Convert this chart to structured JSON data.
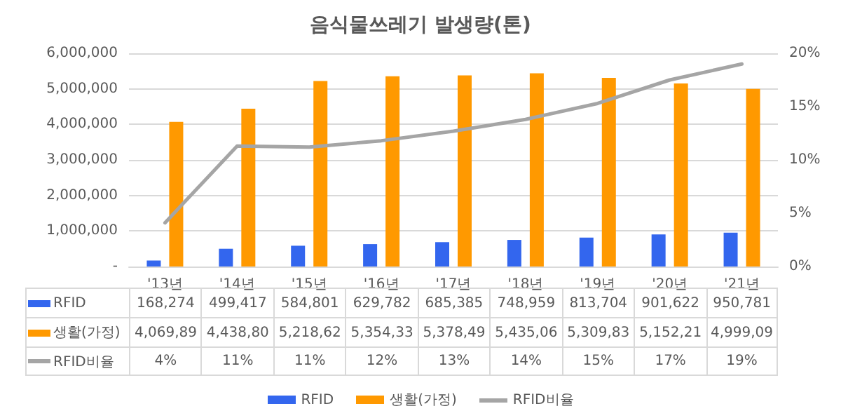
{
  "chart_data": {
    "type": "bar",
    "title": "음식물쓰레기 발생량(톤)",
    "categories": [
      "'13년",
      "'14년",
      "'15년",
      "'16년",
      "'17년",
      "'18년",
      "'19년",
      "'20년",
      "'21년"
    ],
    "series": [
      {
        "name": "RFID",
        "color": "#3366ee",
        "values": [
          168274,
          499417,
          584801,
          629782,
          685385,
          748959,
          813704,
          901622,
          950781
        ],
        "value_labels": [
          "168,274",
          "499,417",
          "584,801",
          "629,782",
          "685,385",
          "748,959",
          "813,704",
          "901,622",
          "950,781"
        ]
      },
      {
        "name": "생활(가정)",
        "color": "#ff9900",
        "values": [
          4069890,
          4438800,
          5218620,
          5354330,
          5378490,
          5435060,
          5309830,
          5152210,
          4999090
        ],
        "value_labels": [
          "4,069,89",
          "4,438,80",
          "5,218,62",
          "5,354,33",
          "5,378,49",
          "5,435,06",
          "5,309,83",
          "5,152,21",
          "4,999,09"
        ]
      },
      {
        "name": "RFID비율",
        "type": "line",
        "axis": "y2",
        "color": "#a5a5a5",
        "values": [
          4.1,
          11.3,
          11.2,
          11.8,
          12.7,
          13.8,
          15.3,
          17.5,
          19.0
        ],
        "value_labels": [
          "4%",
          "11%",
          "11%",
          "12%",
          "13%",
          "14%",
          "15%",
          "17%",
          "19%"
        ]
      }
    ],
    "ylim": [
      0,
      6000000
    ],
    "yticks": [
      {
        "value": 0,
        "label": "-"
      },
      {
        "value": 1000000,
        "label": "1,000,000"
      },
      {
        "value": 2000000,
        "label": "2,000,000"
      },
      {
        "value": 3000000,
        "label": "3,000,000"
      },
      {
        "value": 4000000,
        "label": "4,000,000"
      },
      {
        "value": 5000000,
        "label": "5,000,000"
      },
      {
        "value": 6000000,
        "label": "6,000,000"
      }
    ],
    "y2lim": [
      0,
      20
    ],
    "y2ticks": [
      {
        "value": 0,
        "label": "0%"
      },
      {
        "value": 5,
        "label": "5%"
      },
      {
        "value": 10,
        "label": "10%"
      },
      {
        "value": 15,
        "label": "15%"
      },
      {
        "value": 20,
        "label": "20%"
      }
    ],
    "grid": "y",
    "legend": "bottom",
    "marker": "none"
  }
}
